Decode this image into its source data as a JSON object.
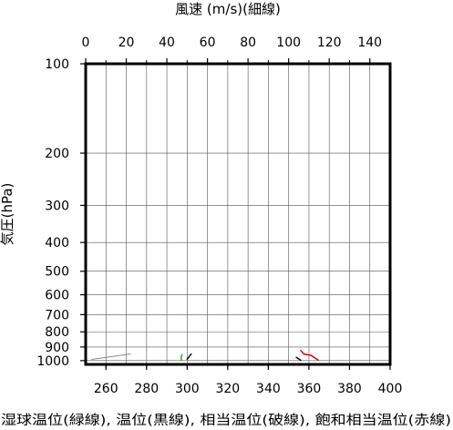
{
  "chart_data": {
    "type": "line",
    "title_top": "風速 (m/s)(細線)",
    "ylabel": "気圧(hPa)",
    "xlabel_bottom": "湿球温位(緑線), 温位(黒線), 相当温位(破線), 飽和相当温位(赤線)",
    "top_axis": {
      "range": [
        0,
        150
      ],
      "ticks": [
        "0",
        "20",
        "40",
        "60",
        "80",
        "100",
        "120",
        "140"
      ],
      "tick_values": [
        0,
        20,
        40,
        60,
        80,
        100,
        120,
        140
      ]
    },
    "bottom_axis": {
      "range": [
        250,
        400
      ],
      "ticks": [
        "260",
        "280",
        "300",
        "320",
        "340",
        "360",
        "380",
        "400"
      ],
      "tick_values": [
        260,
        280,
        300,
        320,
        340,
        360,
        380,
        400
      ]
    },
    "left_axis": {
      "scale": "log",
      "range": [
        100,
        1030
      ],
      "ticks": [
        "100",
        "200",
        "300",
        "400",
        "500",
        "600",
        "700",
        "800",
        "900",
        "1000"
      ],
      "tick_values": [
        100,
        200,
        300,
        400,
        500,
        600,
        700,
        800,
        900,
        1000
      ]
    },
    "grid": true,
    "series": [
      {
        "key": "wind",
        "color": "#7a7a7a",
        "top_axis": true,
        "points": [
          [
            3,
            990
          ],
          [
            22,
            950
          ]
        ]
      },
      {
        "key": "wetbulb",
        "color": "#22aa22",
        "points": [
          [
            297.5,
            955
          ],
          [
            297.0,
            975
          ],
          [
            297.2,
            995
          ]
        ]
      },
      {
        "key": "theta",
        "color": "#111111",
        "points": [
          [
            302.0,
            950
          ],
          [
            301.2,
            965
          ],
          [
            300.5,
            980
          ],
          [
            300.0,
            990
          ]
        ]
      },
      {
        "key": "theta_e",
        "color": "#111111",
        "points": [
          [
            353.8,
            975
          ],
          [
            356.0,
            998
          ]
        ]
      },
      {
        "key": "theta_es",
        "color": "#dd0000",
        "points": [
          [
            356.0,
            925
          ],
          [
            357.5,
            950
          ],
          [
            361.0,
            960
          ],
          [
            363.0,
            980
          ],
          [
            364.5,
            995
          ]
        ]
      }
    ]
  }
}
